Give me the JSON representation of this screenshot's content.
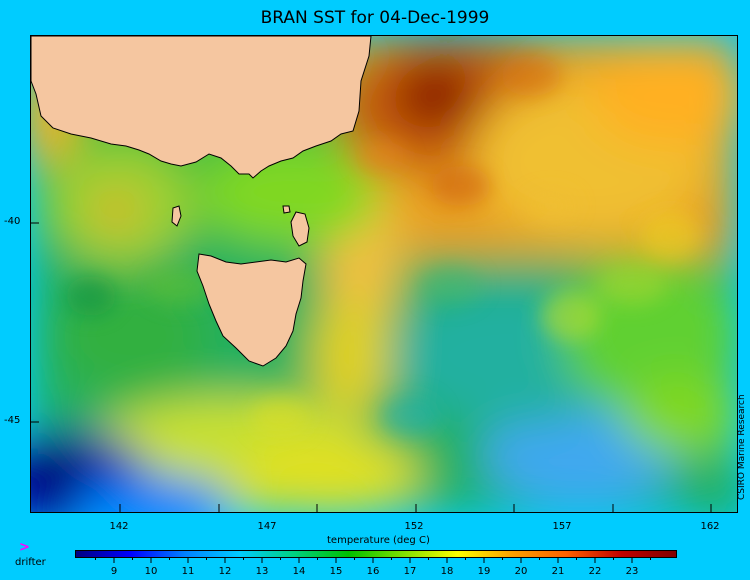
{
  "title": "BRAN SST for 04-Dec-1999",
  "x_axis_label": "temperature (deg C)",
  "x_ticks": [
    "142",
    "147",
    "152",
    "157",
    "162"
  ],
  "y_ticks": [
    "-40",
    "-45"
  ],
  "credit": "CSIRO Marine Research",
  "legend": {
    "marker_symbol": ">",
    "marker_color": "#ff00ff",
    "label": "drifter"
  },
  "colorbar": {
    "labels": [
      "9",
      "10",
      "11",
      "12",
      "13",
      "14",
      "15",
      "16",
      "17",
      "18",
      "19",
      "20",
      "21",
      "22",
      "23"
    ],
    "colors": [
      "#000080",
      "#0000ff",
      "#0080ff",
      "#00ccff",
      "#00d080",
      "#00c000",
      "#80e000",
      "#ffff00",
      "#ffa000",
      "#ff6000",
      "#c00000",
      "#800000"
    ]
  },
  "colors": {
    "background": "#00ccff",
    "land": "#f5c6a0"
  }
}
